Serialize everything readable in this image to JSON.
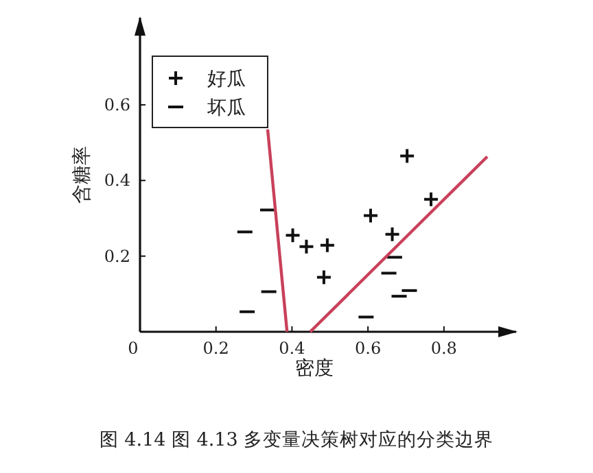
{
  "chart_data": {
    "type": "scatter",
    "xlabel": "密度",
    "ylabel": "含糖率",
    "annotations": [
      "图 4.14   图 4.13 多变量决策树对应的分类边界"
    ],
    "xlim": [
      0,
      0.99
    ],
    "ylim": [
      0,
      0.83
    ],
    "xticks": [
      {
        "value": 0,
        "label": "0"
      },
      {
        "value": 0.2,
        "label": "0.2"
      },
      {
        "value": 0.4,
        "label": "0.4"
      },
      {
        "value": 0.6,
        "label": "0.6"
      },
      {
        "value": 0.8,
        "label": "0.8"
      }
    ],
    "yticks": [
      {
        "value": 0.2,
        "label": "0.2"
      },
      {
        "value": 0.4,
        "label": "0.4"
      },
      {
        "value": 0.6,
        "label": "0.6"
      }
    ],
    "grid": false,
    "legend": "top left",
    "series": [
      {
        "name": "好瓜",
        "color": "#111111",
        "marker": "cross",
        "x": [
          0.402,
          0.438,
          0.493,
          0.484,
          0.607,
          0.664,
          0.703,
          0.766
        ],
        "values": [
          0.255,
          0.225,
          0.229,
          0.144,
          0.307,
          0.258,
          0.465,
          0.35
        ]
      },
      {
        "name": "坏瓜",
        "color": "#111111",
        "x": [
          0.276,
          0.336,
          0.339,
          0.282,
          0.595,
          0.67,
          0.655,
          0.682,
          0.709
        ],
        "values": [
          0.264,
          0.322,
          0.106,
          0.053,
          0.039,
          0.197,
          0.155,
          0.094,
          0.109
        ]
      },
      {
        "type": "line",
        "color": "#c9405a",
        "x": [
          0.336,
          0.387
        ],
        "values": [
          0.535,
          0
        ]
      },
      {
        "type": "line",
        "color": "#c9405a",
        "x": [
          0.448,
          0.914
        ],
        "values": [
          0,
          0.463
        ]
      }
    ]
  }
}
